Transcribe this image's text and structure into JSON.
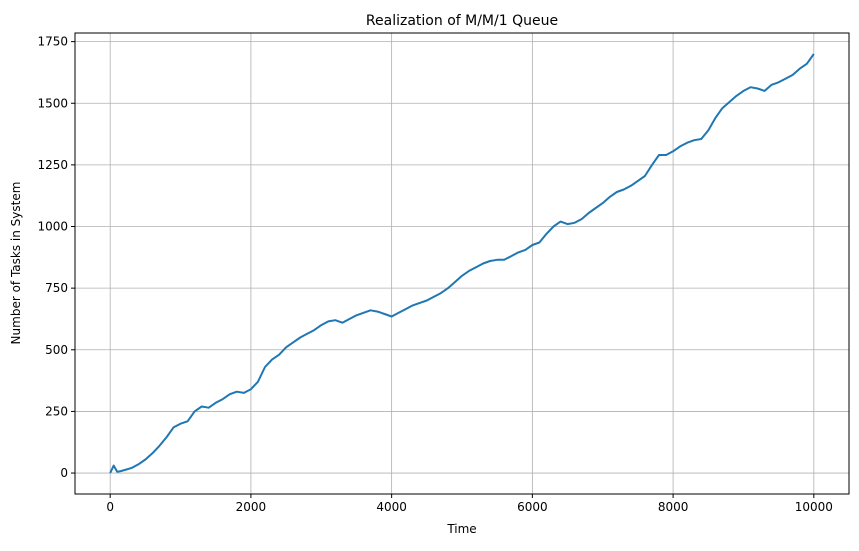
{
  "chart_data": {
    "type": "line",
    "title": "Realization of M/M/1 Queue",
    "xlabel": "Time",
    "ylabel": "Number of Tasks in System",
    "xlim": [
      -500,
      10500
    ],
    "ylim": [
      -85,
      1785
    ],
    "x_ticks": [
      0,
      2000,
      4000,
      6000,
      8000,
      10000
    ],
    "y_ticks": [
      0,
      250,
      500,
      750,
      1000,
      1250,
      1500,
      1750
    ],
    "grid": true,
    "series": [
      {
        "color": "#1f77b4",
        "x": [
          0,
          50,
          100,
          150,
          200,
          300,
          400,
          500,
          600,
          700,
          800,
          900,
          1000,
          1100,
          1200,
          1300,
          1400,
          1500,
          1600,
          1700,
          1800,
          1900,
          2000,
          2100,
          2200,
          2300,
          2400,
          2500,
          2600,
          2700,
          2800,
          2900,
          3000,
          3100,
          3200,
          3300,
          3400,
          3500,
          3600,
          3700,
          3800,
          3900,
          4000,
          4100,
          4200,
          4300,
          4400,
          4500,
          4600,
          4700,
          4800,
          4900,
          5000,
          5100,
          5200,
          5300,
          5400,
          5500,
          5600,
          5700,
          5800,
          5900,
          6000,
          6100,
          6200,
          6300,
          6400,
          6500,
          6600,
          6700,
          6800,
          6900,
          7000,
          7100,
          7200,
          7300,
          7400,
          7500,
          7600,
          7700,
          7800,
          7900,
          8000,
          8100,
          8200,
          8300,
          8400,
          8500,
          8600,
          8700,
          8800,
          8900,
          9000,
          9100,
          9200,
          9300,
          9400,
          9500,
          9600,
          9700,
          9800,
          9900,
          10000
        ],
        "y": [
          0,
          30,
          5,
          8,
          12,
          20,
          35,
          55,
          80,
          110,
          145,
          185,
          200,
          210,
          250,
          270,
          265,
          285,
          300,
          320,
          330,
          325,
          340,
          370,
          430,
          460,
          480,
          510,
          530,
          550,
          565,
          580,
          600,
          615,
          620,
          610,
          625,
          640,
          650,
          660,
          655,
          645,
          635,
          650,
          665,
          680,
          690,
          700,
          715,
          730,
          750,
          775,
          800,
          820,
          835,
          850,
          860,
          865,
          865,
          880,
          895,
          905,
          925,
          935,
          970,
          1000,
          1020,
          1010,
          1015,
          1030,
          1055,
          1075,
          1095,
          1120,
          1140,
          1150,
          1165,
          1185,
          1205,
          1250,
          1290,
          1290,
          1305,
          1325,
          1340,
          1350,
          1355,
          1390,
          1440,
          1480,
          1505,
          1530,
          1550,
          1565,
          1560,
          1550,
          1575,
          1585,
          1600,
          1615,
          1640,
          1660,
          1700
        ]
      }
    ]
  }
}
